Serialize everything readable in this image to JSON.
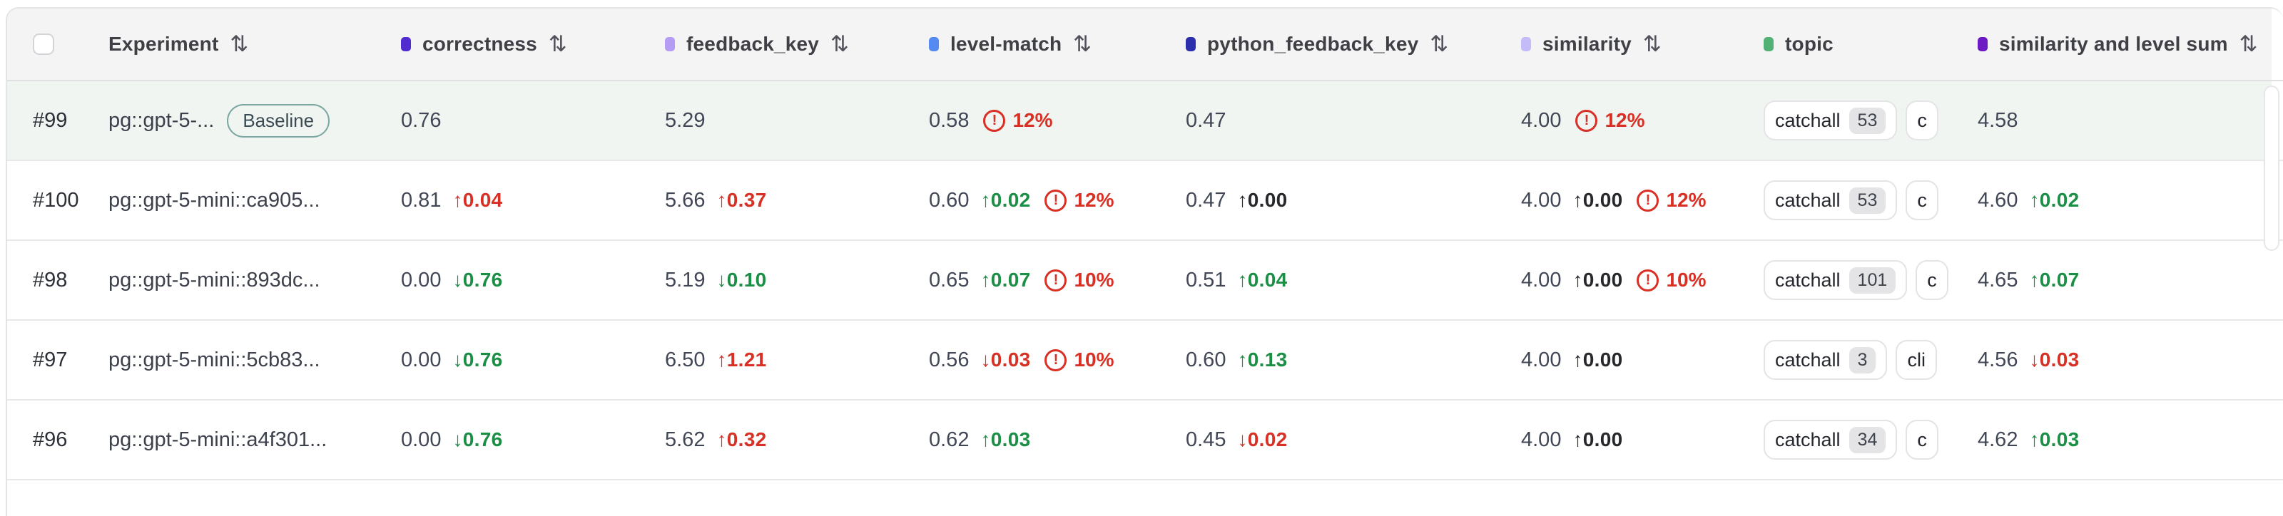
{
  "table": {
    "sort_icon": "⇅",
    "arrow_up": "↑",
    "arrow_down": "↓",
    "warn_glyph": "!",
    "colors": {
      "warn_red": "#d93025",
      "delta_green": "#1a8f45",
      "delta_red": "#d93025",
      "highlight_row_bg": "#f0f5f2",
      "baseline_badge_border": "#7aa8a0"
    },
    "columns": [
      {
        "key": "experiment",
        "label": "Experiment",
        "dot": null,
        "sortable": true
      },
      {
        "key": "correctness",
        "label": "correctness",
        "dot": "#4f2bd0",
        "sortable": true
      },
      {
        "key": "feedback_key",
        "label": "feedback_key",
        "dot": "#b49cf4",
        "sortable": true
      },
      {
        "key": "level_match",
        "label": "level-match",
        "dot": "#548af2",
        "sortable": true
      },
      {
        "key": "python_feedback_key",
        "label": "python_feedback_key",
        "dot": "#2b2fae",
        "sortable": true
      },
      {
        "key": "similarity",
        "label": "similarity",
        "dot": "#c4bcf8",
        "sortable": true
      },
      {
        "key": "topic",
        "label": "topic",
        "dot": "#53b175",
        "sortable": false
      },
      {
        "key": "similarity_and_level_sum",
        "label": "similarity and level sum",
        "dot": "#6d1ac4",
        "sortable": true
      }
    ],
    "rows": [
      {
        "id": "#99",
        "name": "pg::gpt-5-...",
        "badge": "Baseline",
        "highlight": true,
        "metrics": {
          "correctness": {
            "value": "0.76"
          },
          "feedback_key": {
            "value": "5.29"
          },
          "level_match": {
            "value": "0.58",
            "warn": "12%"
          },
          "python_feedback_key": {
            "value": "0.47"
          },
          "similarity": {
            "value": "4.00",
            "warn": "12%"
          }
        },
        "topics": [
          {
            "label": "catchall",
            "count": "53"
          },
          {
            "label": "c",
            "count": ""
          }
        ],
        "sum": {
          "value": "4.58"
        }
      },
      {
        "id": "#100",
        "name": "pg::gpt-5-mini::ca905...",
        "badge": null,
        "highlight": false,
        "metrics": {
          "correctness": {
            "value": "0.81",
            "delta": {
              "dir": "up",
              "value": "0.04",
              "tone": "red"
            }
          },
          "feedback_key": {
            "value": "5.66",
            "delta": {
              "dir": "up",
              "value": "0.37",
              "tone": "red"
            }
          },
          "level_match": {
            "value": "0.60",
            "delta": {
              "dir": "up",
              "value": "0.02",
              "tone": "green"
            },
            "warn": "12%"
          },
          "python_feedback_key": {
            "value": "0.47",
            "delta": {
              "dir": "up",
              "value": "0.00",
              "tone": "neutral"
            }
          },
          "similarity": {
            "value": "4.00",
            "delta": {
              "dir": "up",
              "value": "0.00",
              "tone": "neutral"
            },
            "warn": "12%"
          }
        },
        "topics": [
          {
            "label": "catchall",
            "count": "53"
          },
          {
            "label": "c",
            "count": ""
          }
        ],
        "sum": {
          "value": "4.60",
          "delta": {
            "dir": "up",
            "value": "0.02",
            "tone": "green"
          }
        }
      },
      {
        "id": "#98",
        "name": "pg::gpt-5-mini::893dc...",
        "badge": null,
        "highlight": false,
        "metrics": {
          "correctness": {
            "value": "0.00",
            "delta": {
              "dir": "down",
              "value": "0.76",
              "tone": "green"
            }
          },
          "feedback_key": {
            "value": "5.19",
            "delta": {
              "dir": "down",
              "value": "0.10",
              "tone": "green"
            }
          },
          "level_match": {
            "value": "0.65",
            "delta": {
              "dir": "up",
              "value": "0.07",
              "tone": "green"
            },
            "warn": "10%"
          },
          "python_feedback_key": {
            "value": "0.51",
            "delta": {
              "dir": "up",
              "value": "0.04",
              "tone": "green"
            }
          },
          "similarity": {
            "value": "4.00",
            "delta": {
              "dir": "up",
              "value": "0.00",
              "tone": "neutral"
            },
            "warn": "10%"
          }
        },
        "topics": [
          {
            "label": "catchall",
            "count": "101"
          },
          {
            "label": "c",
            "count": ""
          }
        ],
        "sum": {
          "value": "4.65",
          "delta": {
            "dir": "up",
            "value": "0.07",
            "tone": "green"
          }
        }
      },
      {
        "id": "#97",
        "name": "pg::gpt-5-mini::5cb83...",
        "badge": null,
        "highlight": false,
        "metrics": {
          "correctness": {
            "value": "0.00",
            "delta": {
              "dir": "down",
              "value": "0.76",
              "tone": "green"
            }
          },
          "feedback_key": {
            "value": "6.50",
            "delta": {
              "dir": "up",
              "value": "1.21",
              "tone": "red"
            }
          },
          "level_match": {
            "value": "0.56",
            "delta": {
              "dir": "down",
              "value": "0.03",
              "tone": "red"
            },
            "warn": "10%"
          },
          "python_feedback_key": {
            "value": "0.60",
            "delta": {
              "dir": "up",
              "value": "0.13",
              "tone": "green"
            }
          },
          "similarity": {
            "value": "4.00",
            "delta": {
              "dir": "up",
              "value": "0.00",
              "tone": "neutral"
            }
          }
        },
        "topics": [
          {
            "label": "catchall",
            "count": "3"
          },
          {
            "label": "cli",
            "count": ""
          }
        ],
        "sum": {
          "value": "4.56",
          "delta": {
            "dir": "down",
            "value": "0.03",
            "tone": "red"
          }
        }
      },
      {
        "id": "#96",
        "name": "pg::gpt-5-mini::a4f301...",
        "badge": null,
        "highlight": false,
        "metrics": {
          "correctness": {
            "value": "0.00",
            "delta": {
              "dir": "down",
              "value": "0.76",
              "tone": "green"
            }
          },
          "feedback_key": {
            "value": "5.62",
            "delta": {
              "dir": "up",
              "value": "0.32",
              "tone": "red"
            }
          },
          "level_match": {
            "value": "0.62",
            "delta": {
              "dir": "up",
              "value": "0.03",
              "tone": "green"
            }
          },
          "python_feedback_key": {
            "value": "0.45",
            "delta": {
              "dir": "down",
              "value": "0.02",
              "tone": "red"
            }
          },
          "similarity": {
            "value": "4.00",
            "delta": {
              "dir": "up",
              "value": "0.00",
              "tone": "neutral"
            }
          }
        },
        "topics": [
          {
            "label": "catchall",
            "count": "34"
          },
          {
            "label": "c",
            "count": ""
          }
        ],
        "sum": {
          "value": "4.62",
          "delta": {
            "dir": "up",
            "value": "0.03",
            "tone": "green"
          }
        }
      }
    ],
    "partial_row": {
      "topics": [
        {
          "label": "",
          "count": ""
        },
        {
          "label": "",
          "count": ""
        }
      ]
    }
  }
}
